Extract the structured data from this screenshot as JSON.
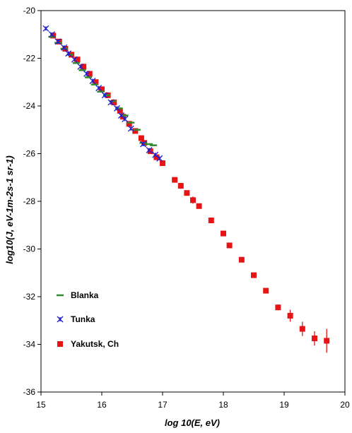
{
  "chart_data": {
    "type": "scatter",
    "xlabel": "log 10(E, eV)",
    "ylabel": "log10(J, eV-1m-2s-1 sr-1)",
    "xlim": [
      15,
      20
    ],
    "ylim": [
      -36,
      -20
    ],
    "xticks": [
      15,
      16,
      17,
      18,
      19,
      20
    ],
    "yticks": [
      -20,
      -22,
      -24,
      -26,
      -28,
      -30,
      -32,
      -34,
      -36
    ],
    "xtick_labels": [
      "15",
      "16",
      "17",
      "18",
      "19",
      "20"
    ],
    "ytick_labels": [
      "-20",
      "-22",
      "-24",
      "-26",
      "-28",
      "-30",
      "-32",
      "-34",
      "-36"
    ],
    "grid": false,
    "legend_position": "lower-left",
    "series": [
      {
        "name": "Blanka",
        "marker": "dash",
        "color": "#2e8b2e",
        "points": [
          [
            15.18,
            -21.1
          ],
          [
            15.28,
            -21.35
          ],
          [
            15.38,
            -21.6
          ],
          [
            15.48,
            -21.85
          ],
          [
            15.58,
            -22.2
          ],
          [
            15.68,
            -22.5
          ],
          [
            15.78,
            -22.8
          ],
          [
            15.88,
            -23.1
          ],
          [
            15.98,
            -23.4
          ],
          [
            16.08,
            -23.55
          ],
          [
            16.18,
            -23.8
          ],
          [
            16.28,
            -24.1
          ],
          [
            16.38,
            -24.4
          ],
          [
            16.48,
            -24.7
          ],
          [
            16.58,
            -25.0
          ],
          [
            16.68,
            -25.55
          ],
          [
            16.78,
            -25.6
          ],
          [
            16.85,
            -25.65
          ]
        ]
      },
      {
        "name": "Tunka",
        "marker": "asterisk",
        "color": "#1f1fd0",
        "points": [
          [
            15.08,
            -20.75
          ],
          [
            15.18,
            -21.0
          ],
          [
            15.28,
            -21.3
          ],
          [
            15.38,
            -21.55
          ],
          [
            15.45,
            -21.8
          ],
          [
            15.55,
            -22.05
          ],
          [
            15.65,
            -22.35
          ],
          [
            15.75,
            -22.65
          ],
          [
            15.85,
            -22.95
          ],
          [
            15.95,
            -23.25
          ],
          [
            16.05,
            -23.55
          ],
          [
            16.15,
            -23.85
          ],
          [
            16.25,
            -24.1
          ],
          [
            16.32,
            -24.4
          ],
          [
            16.38,
            -24.55
          ],
          [
            16.48,
            -24.95
          ],
          [
            16.68,
            -25.6
          ],
          [
            16.78,
            -25.85
          ],
          [
            16.88,
            -26.05
          ],
          [
            16.95,
            -26.2
          ]
        ]
      },
      {
        "name": "Yakutsk, Ch",
        "marker": "square",
        "color": "#e61414",
        "points": [
          [
            15.2,
            -21.05,
            0
          ],
          [
            15.3,
            -21.3,
            0
          ],
          [
            15.4,
            -21.6,
            0
          ],
          [
            15.5,
            -21.85,
            0
          ],
          [
            15.6,
            -22.05,
            0
          ],
          [
            15.7,
            -22.35,
            0
          ],
          [
            15.8,
            -22.65,
            0
          ],
          [
            15.9,
            -23.0,
            0
          ],
          [
            16.0,
            -23.3,
            0
          ],
          [
            16.1,
            -23.55,
            0
          ],
          [
            16.2,
            -23.85,
            0
          ],
          [
            16.3,
            -24.2,
            0
          ],
          [
            16.35,
            -24.45,
            0
          ],
          [
            16.45,
            -24.75,
            0
          ],
          [
            16.55,
            -25.05,
            0
          ],
          [
            16.65,
            -25.35,
            0
          ],
          [
            16.7,
            -25.55,
            0
          ],
          [
            16.8,
            -25.9,
            0
          ],
          [
            16.9,
            -26.15,
            0
          ],
          [
            17.0,
            -26.4,
            0
          ],
          [
            17.2,
            -27.1,
            0
          ],
          [
            17.3,
            -27.35,
            0.12
          ],
          [
            17.4,
            -27.65,
            0.1
          ],
          [
            17.5,
            -27.95,
            0.15
          ],
          [
            17.6,
            -28.2,
            0
          ],
          [
            17.8,
            -28.8,
            0
          ],
          [
            18.0,
            -29.35,
            0
          ],
          [
            18.1,
            -29.85,
            0
          ],
          [
            18.3,
            -30.45,
            0
          ],
          [
            18.5,
            -31.1,
            0
          ],
          [
            18.7,
            -31.75,
            0
          ],
          [
            18.9,
            -32.45,
            0.12
          ],
          [
            19.1,
            -32.8,
            0.25
          ],
          [
            19.3,
            -33.35,
            0.3
          ],
          [
            19.5,
            -33.75,
            0.3
          ],
          [
            19.7,
            -33.85,
            0.5
          ]
        ]
      }
    ]
  }
}
